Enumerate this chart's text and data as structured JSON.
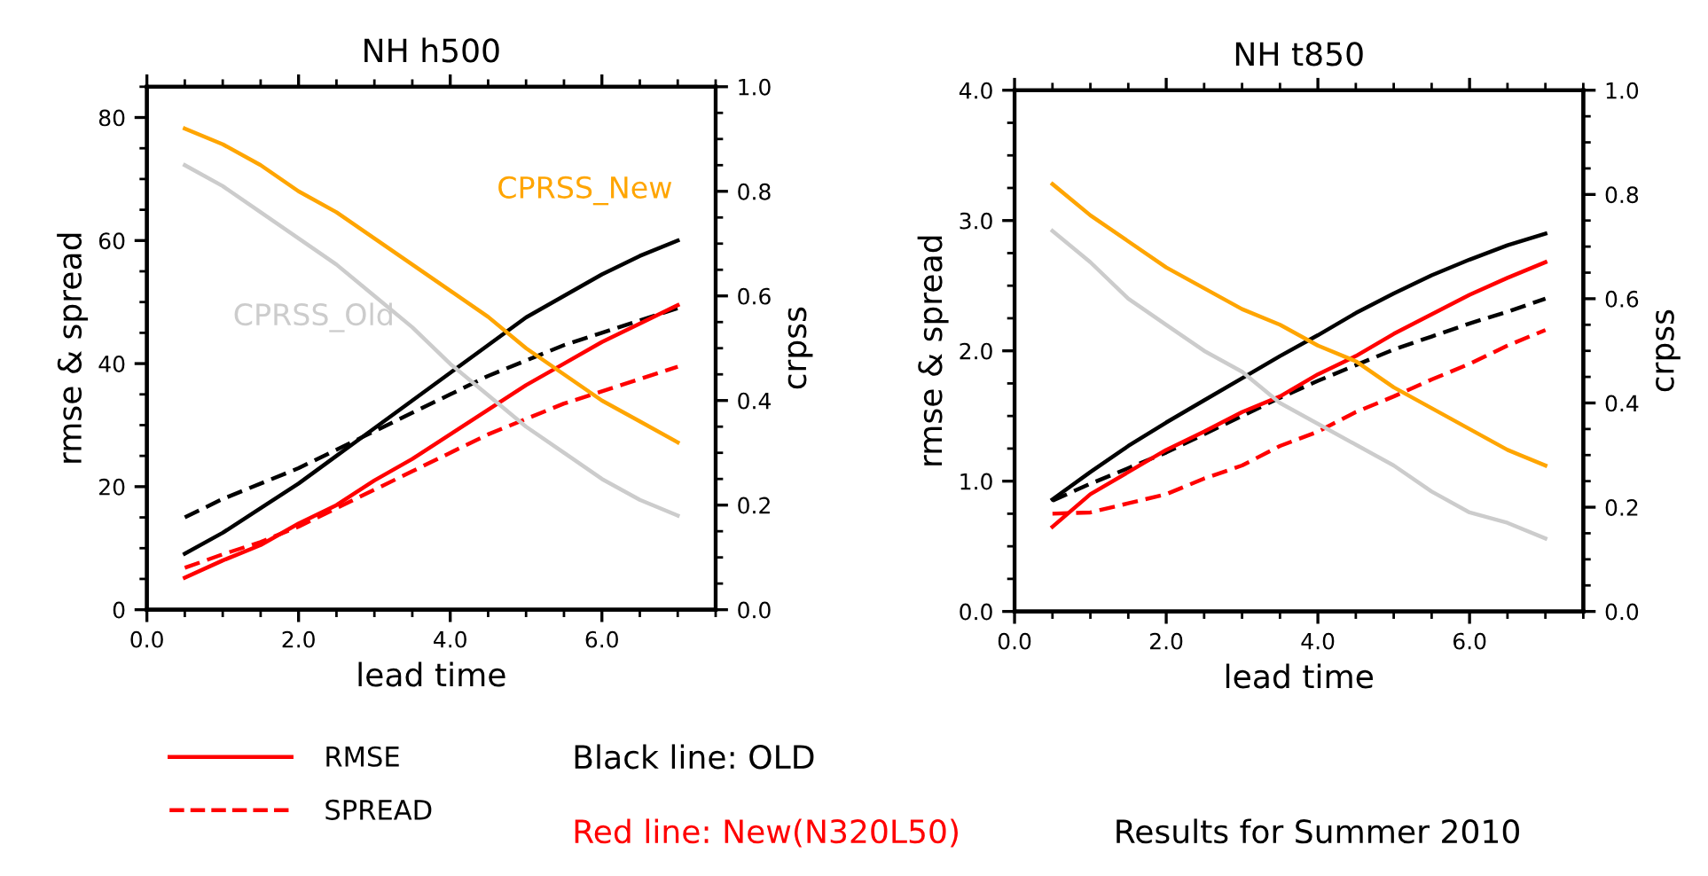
{
  "chart_data": [
    {
      "type": "line",
      "title": "NH h500",
      "xlabel": "lead time",
      "ylabel": "rmse & spread",
      "y2label": "crpss",
      "x": [
        0.5,
        1.0,
        1.5,
        2.0,
        2.5,
        3.0,
        3.5,
        4.0,
        4.5,
        5.0,
        5.5,
        6.0,
        6.5,
        7.0
      ],
      "xlim": [
        0,
        7.5
      ],
      "xticks": [
        {
          "value": 0,
          "label": "0.0"
        },
        {
          "value": 2,
          "label": "2.0"
        },
        {
          "value": 4,
          "label": "4.0"
        },
        {
          "value": 6,
          "label": "6.0"
        }
      ],
      "ylim": [
        0,
        85
      ],
      "yticks": [
        0,
        20,
        40,
        60,
        80
      ],
      "y2lim": [
        0,
        1
      ],
      "y2ticks": [
        {
          "value": 0,
          "label": "0.0"
        },
        {
          "value": 0.2,
          "label": "0.2"
        },
        {
          "value": 0.4,
          "label": "0.4"
        },
        {
          "value": 0.6,
          "label": "0.6"
        },
        {
          "value": 0.8,
          "label": "0.8"
        },
        {
          "value": 1,
          "label": "1.0"
        }
      ],
      "grid": false,
      "legend": "bottom",
      "series": [
        {
          "color": "#000000",
          "line_style": "solid",
          "values": [
            9.1,
            12.5,
            16.5,
            20.5,
            25,
            29.5,
            34,
            38.5,
            43,
            47.5,
            51,
            54.5,
            57.5,
            60
          ]
        },
        {
          "color": "#000000",
          "line_style": "dashed",
          "values": [
            15,
            18,
            20.5,
            23,
            26,
            29,
            32,
            35,
            38,
            40.5,
            43,
            45,
            47,
            49
          ]
        },
        {
          "name": "RMSE",
          "color": "#ff0000",
          "line_style": "solid",
          "values": [
            5.2,
            8,
            10.5,
            14,
            17,
            21,
            24.5,
            28.5,
            32.5,
            36.5,
            40,
            43.5,
            46.5,
            49.5
          ]
        },
        {
          "name": "SPREAD",
          "color": "#ff0000",
          "line_style": "dashed",
          "values": [
            6.8,
            9,
            11,
            13.5,
            16.5,
            19.5,
            22.5,
            25.5,
            28.5,
            31,
            33.5,
            35.5,
            37.5,
            39.5
          ]
        },
        {
          "name": "CPRSS_New",
          "color": "#ffa500",
          "line_style": "solid",
          "axis": "y2",
          "values": [
            0.92,
            0.89,
            0.85,
            0.8,
            0.76,
            0.71,
            0.66,
            0.61,
            0.56,
            0.5,
            0.45,
            0.4,
            0.36,
            0.32
          ]
        },
        {
          "name": "CPRSS_Old",
          "color": "#cccccc",
          "line_style": "solid",
          "axis": "y2",
          "values": [
            0.85,
            0.81,
            0.76,
            0.71,
            0.66,
            0.6,
            0.54,
            0.47,
            0.41,
            0.35,
            0.3,
            0.25,
            0.21,
            0.18
          ]
        }
      ],
      "annotations": [
        "Black line: OLD",
        "Red line: New(N320L50)",
        "Results for Summer 2010"
      ]
    },
    {
      "type": "line",
      "title": "NH t850",
      "xlabel": "lead time",
      "ylabel": "rmse & spread",
      "y2label": "crpss",
      "x": [
        0.5,
        1.0,
        1.5,
        2.0,
        2.5,
        3.0,
        3.5,
        4.0,
        4.5,
        5.0,
        5.5,
        6.0,
        6.5,
        7.0
      ],
      "xlim": [
        0,
        7.5
      ],
      "xticks": [
        {
          "value": 0,
          "label": "0.0"
        },
        {
          "value": 2,
          "label": "2.0"
        },
        {
          "value": 4,
          "label": "4.0"
        },
        {
          "value": 6,
          "label": "6.0"
        }
      ],
      "ylim": [
        0,
        4
      ],
      "yticks": [
        {
          "value": 0,
          "label": "0.0"
        },
        {
          "value": 1,
          "label": "1.0"
        },
        {
          "value": 2,
          "label": "2.0"
        },
        {
          "value": 3,
          "label": "3.0"
        },
        {
          "value": 4,
          "label": "4.0"
        }
      ],
      "y2lim": [
        0,
        1
      ],
      "y2ticks": [
        {
          "value": 0,
          "label": "0.0"
        },
        {
          "value": 0.2,
          "label": "0.2"
        },
        {
          "value": 0.4,
          "label": "0.4"
        },
        {
          "value": 0.6,
          "label": "0.6"
        },
        {
          "value": 0.8,
          "label": "0.8"
        },
        {
          "value": 1,
          "label": "1.0"
        }
      ],
      "grid": false,
      "series": [
        {
          "color": "#000000",
          "line_style": "solid",
          "values": [
            0.86,
            1.07,
            1.27,
            1.45,
            1.62,
            1.79,
            1.96,
            2.12,
            2.29,
            2.44,
            2.58,
            2.7,
            2.81,
            2.9
          ]
        },
        {
          "color": "#000000",
          "line_style": "dashed",
          "values": [
            0.85,
            0.98,
            1.1,
            1.22,
            1.36,
            1.5,
            1.64,
            1.77,
            1.89,
            2.01,
            2.11,
            2.21,
            2.3,
            2.4
          ]
        },
        {
          "color": "#ff0000",
          "line_style": "solid",
          "values": [
            0.65,
            0.9,
            1.07,
            1.24,
            1.38,
            1.53,
            1.65,
            1.82,
            1.96,
            2.13,
            2.28,
            2.43,
            2.56,
            2.68
          ]
        },
        {
          "color": "#ff0000",
          "line_style": "dashed",
          "values": [
            0.75,
            0.76,
            0.83,
            0.9,
            1.02,
            1.12,
            1.27,
            1.38,
            1.53,
            1.65,
            1.78,
            1.9,
            2.04,
            2.16
          ]
        },
        {
          "color": "#ffa500",
          "line_style": "solid",
          "axis": "y2",
          "values": [
            0.82,
            0.76,
            0.71,
            0.66,
            0.62,
            0.58,
            0.55,
            0.51,
            0.48,
            0.43,
            0.39,
            0.35,
            0.31,
            0.28
          ]
        },
        {
          "color": "#cccccc",
          "line_style": "solid",
          "axis": "y2",
          "values": [
            0.73,
            0.67,
            0.6,
            0.55,
            0.5,
            0.46,
            0.4,
            0.36,
            0.32,
            0.28,
            0.23,
            0.19,
            0.17,
            0.14
          ]
        }
      ]
    }
  ]
}
